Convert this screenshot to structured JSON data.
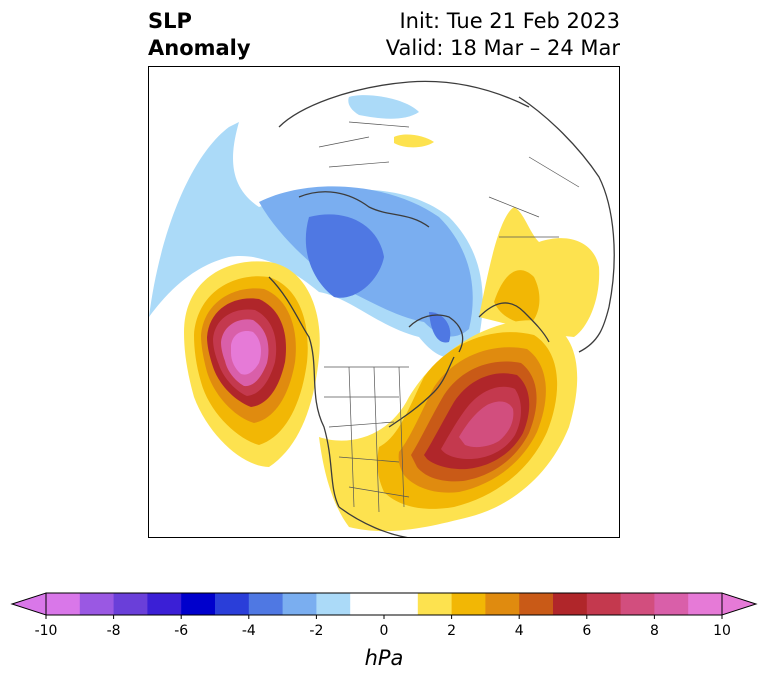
{
  "title": {
    "left_line1": "SLP",
    "left_line2": "Anomaly",
    "right_line1": "Init: Tue 21 Feb 2023",
    "right_line2": "Valid: 18 Mar – 24 Mar"
  },
  "colorbar": {
    "unit": "hPa",
    "ticks": [
      "-10",
      "-8",
      "-6",
      "-4",
      "-2",
      "0",
      "2",
      "4",
      "6",
      "8",
      "10"
    ],
    "colors": [
      "#d977e9",
      "#9a58e3",
      "#6a3fd9",
      "#3b1fd6",
      "#0000cc",
      "#2a3ed9",
      "#4f78e3",
      "#7aaef0",
      "#abdaf8",
      "#ffffff",
      "#ffffff",
      "#fde24f",
      "#f2b705",
      "#e08b0f",
      "#c95a17",
      "#b0262a",
      "#c4394e",
      "#d24e7e",
      "#d95fa9",
      "#e67ad7"
    ],
    "extend": "both"
  },
  "map": {
    "projection": "north-polar-stereographic",
    "features": [
      {
        "name": "Northeast Pacific high",
        "sign": "positive",
        "peak_hPa": 10
      },
      {
        "name": "Western Atlantic high",
        "sign": "positive",
        "peak_hPa": 8
      },
      {
        "name": "Arctic / Siberia low",
        "sign": "negative",
        "peak_hPa": -4
      },
      {
        "name": "Europe high",
        "sign": "positive",
        "peak_hPa": 3
      }
    ]
  }
}
